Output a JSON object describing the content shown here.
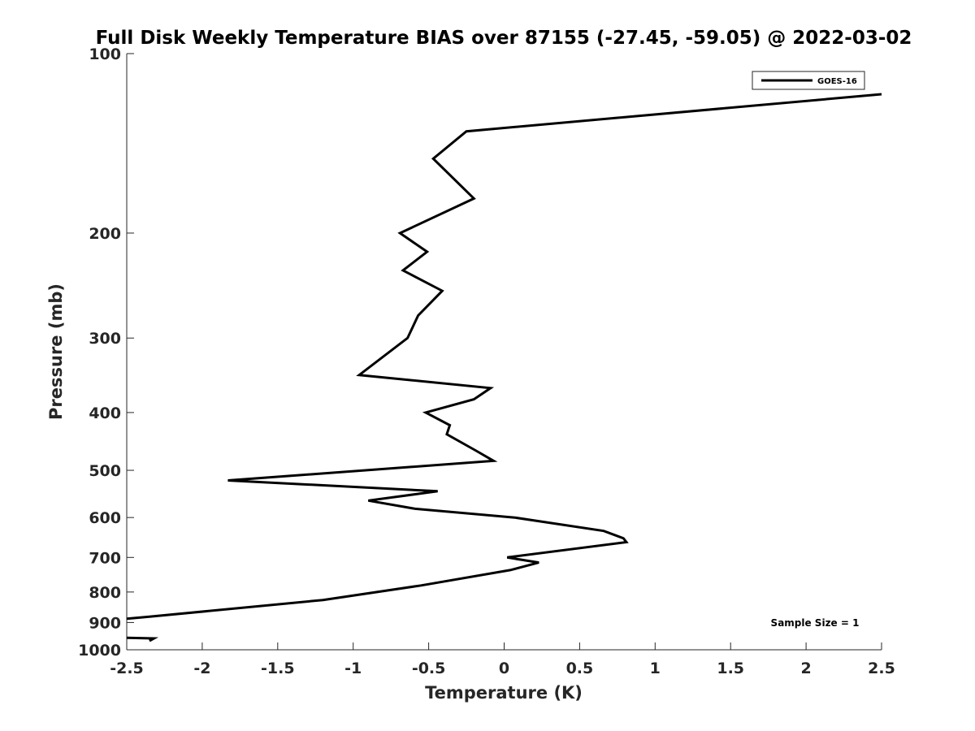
{
  "chart_data": {
    "type": "line",
    "title": "Full Disk Weekly Temperature BIAS over 87155 (-27.45, -59.05) @ 2022-03-02",
    "xlabel": "Temperature (K)",
    "ylabel": "Pressure (mb)",
    "xlim": [
      -2.5,
      2.5
    ],
    "ylim": [
      100,
      1000
    ],
    "y_scale": "log",
    "y_reversed": true,
    "x_ticks": [
      -2.5,
      -2,
      -1.5,
      -1,
      -0.5,
      0,
      0.5,
      1,
      1.5,
      2,
      2.5
    ],
    "x_tick_labels": [
      "-2.5",
      "-2",
      "-1.5",
      "-1",
      "-0.5",
      "0",
      "0.5",
      "1",
      "1.5",
      "2",
      "2.5"
    ],
    "y_ticks": [
      100,
      200,
      300,
      400,
      500,
      600,
      700,
      800,
      900,
      1000
    ],
    "y_tick_labels": [
      "100",
      "200",
      "300",
      "400",
      "500",
      "600",
      "700",
      "800",
      "900",
      "1000"
    ],
    "grid": false,
    "legend_position": "top-right",
    "annotation": "Sample Size = 1",
    "series": [
      {
        "name": "GOES-16",
        "color": "#000000",
        "points": [
          {
            "x": 2.5,
            "y": 117
          },
          {
            "x": -0.25,
            "y": 135
          },
          {
            "x": -0.47,
            "y": 150
          },
          {
            "x": -0.2,
            "y": 175
          },
          {
            "x": -0.69,
            "y": 200
          },
          {
            "x": -0.51,
            "y": 215
          },
          {
            "x": -0.67,
            "y": 231
          },
          {
            "x": -0.41,
            "y": 250
          },
          {
            "x": -0.57,
            "y": 275
          },
          {
            "x": -0.64,
            "y": 300
          },
          {
            "x": -0.96,
            "y": 346
          },
          {
            "x": -0.09,
            "y": 364
          },
          {
            "x": -0.2,
            "y": 380
          },
          {
            "x": -0.52,
            "y": 400
          },
          {
            "x": -0.36,
            "y": 420
          },
          {
            "x": -0.38,
            "y": 435
          },
          {
            "x": -0.19,
            "y": 463
          },
          {
            "x": -0.07,
            "y": 482
          },
          {
            "x": -1.83,
            "y": 520
          },
          {
            "x": -0.44,
            "y": 542
          },
          {
            "x": -0.9,
            "y": 562
          },
          {
            "x": -0.59,
            "y": 580
          },
          {
            "x": 0.07,
            "y": 600
          },
          {
            "x": 0.66,
            "y": 632
          },
          {
            "x": 0.79,
            "y": 650
          },
          {
            "x": 0.81,
            "y": 660
          },
          {
            "x": 0.02,
            "y": 700
          },
          {
            "x": 0.23,
            "y": 714
          },
          {
            "x": 0.04,
            "y": 735
          },
          {
            "x": -0.55,
            "y": 780
          },
          {
            "x": -1.2,
            "y": 825
          },
          {
            "x": -2.35,
            "y": 880
          },
          {
            "x": -2.5,
            "y": 887
          }
        ]
      },
      {
        "name": "GOES-16",
        "color": "#000000",
        "points": [
          {
            "x": -2.5,
            "y": 955
          },
          {
            "x": -2.32,
            "y": 957
          },
          {
            "x": -2.35,
            "y": 966
          }
        ]
      }
    ]
  }
}
